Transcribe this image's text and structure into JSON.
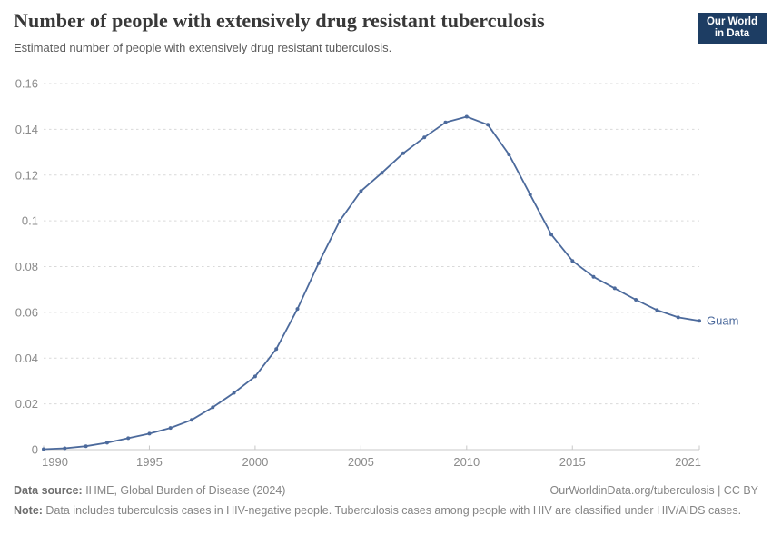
{
  "header": {
    "title": "Number of people with extensively drug resistant tuberculosis",
    "subtitle": "Estimated number of people with extensively drug resistant tuberculosis.",
    "logo": {
      "line1": "Our World",
      "line2": "in Data",
      "bg_color": "#1d3d63",
      "accent_color": "#dc2e1c"
    }
  },
  "chart_data": {
    "type": "line",
    "title": "Number of people with extensively drug resistant tuberculosis",
    "subtitle": "Estimated number of people with extensively drug resistant tuberculosis.",
    "xlabel": "",
    "ylabel": "",
    "xlim": [
      1990,
      2021
    ],
    "ylim": [
      0,
      0.16
    ],
    "x_ticks": [
      1990,
      1995,
      2000,
      2005,
      2010,
      2015,
      2021
    ],
    "y_tick_labels": [
      "0",
      "0.02",
      "0.04",
      "0.06",
      "0.08",
      "0.1",
      "0.12",
      "0.14",
      "0.16"
    ],
    "grid": "horizontal dashed",
    "legend_position": "end-of-line label",
    "colors": {
      "grid": "#d9d9d9",
      "axis": "#c8c8c8",
      "tick_text": "#8b8b8b"
    },
    "series": [
      {
        "name": "Guam",
        "color": "#4c6a9c",
        "x": [
          1990,
          1991,
          1992,
          1993,
          1994,
          1995,
          1996,
          1997,
          1998,
          1999,
          2000,
          2001,
          2002,
          2003,
          2004,
          2005,
          2006,
          2007,
          2008,
          2009,
          2010,
          2011,
          2012,
          2013,
          2014,
          2015,
          2016,
          2017,
          2018,
          2019,
          2020,
          2021
        ],
        "values": [
          0.0002,
          0.0006,
          0.0015,
          0.003,
          0.005,
          0.007,
          0.0095,
          0.013,
          0.0185,
          0.0248,
          0.032,
          0.044,
          0.0615,
          0.0815,
          0.1,
          0.113,
          0.121,
          0.1295,
          0.1365,
          0.143,
          0.1455,
          0.142,
          0.129,
          0.1115,
          0.094,
          0.0825,
          0.0755,
          0.0705,
          0.0655,
          0.061,
          0.0578,
          0.0563
        ]
      }
    ]
  },
  "footer": {
    "source_label": "Data source:",
    "source_text": " IHME, Global Burden of Disease (2024)",
    "rights": "OurWorldinData.org/tuberculosis | CC BY",
    "note_label": "Note:",
    "note_text": " Data includes tuberculosis cases in HIV-negative people. Tuberculosis cases among people with HIV are classified under HIV/AIDS cases."
  }
}
